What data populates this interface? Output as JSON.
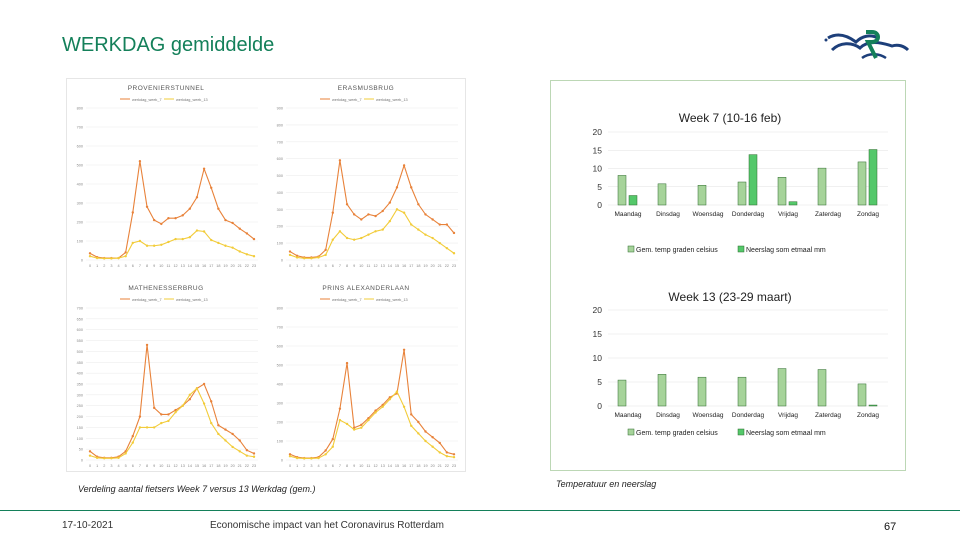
{
  "slide": {
    "title": "WERKDAG gemiddelde",
    "caption_left": "Verdeling aantal fietsers Week 7 versus 13 Werkdag (gem.)",
    "caption_right": "Temperatuur en neerslag",
    "footer_date": "17-10-2021",
    "footer_text": "Economische impact van het Coronavirus Rotterdam",
    "page_number": "67"
  },
  "colors": {
    "brand": "#14805a",
    "orange": "#e8823a",
    "yellow": "#f2cc3a",
    "temp": "#a6d39a",
    "rain": "#54c86a"
  },
  "chart_data": [
    {
      "type": "line",
      "title": "PROVENIERSTUNNEL",
      "legend": [
        "werkdag_week_7",
        "werkdag_week_13"
      ],
      "x": [
        "0",
        "1",
        "2",
        "3",
        "4",
        "5",
        "6",
        "7",
        "8",
        "9",
        "10",
        "11",
        "12",
        "13",
        "14",
        "15",
        "16",
        "17",
        "18",
        "19",
        "20",
        "21",
        "22",
        "23"
      ],
      "ylim": [
        0,
        800
      ],
      "yticks": [
        "0",
        "100",
        "200",
        "300",
        "400",
        "500",
        "600",
        "700",
        "800"
      ],
      "series": [
        {
          "name": "werkdag_week_7",
          "values": [
            35,
            15,
            10,
            10,
            10,
            40,
            250,
            520,
            280,
            210,
            190,
            220,
            220,
            235,
            270,
            330,
            480,
            380,
            270,
            210,
            195,
            165,
            140,
            110
          ]
        },
        {
          "name": "werkdag_week_13",
          "values": [
            20,
            10,
            8,
            8,
            10,
            20,
            90,
            100,
            75,
            75,
            80,
            95,
            110,
            110,
            120,
            155,
            150,
            105,
            90,
            75,
            65,
            45,
            30,
            20
          ]
        }
      ]
    },
    {
      "type": "line",
      "title": "ERASMUSBRUG",
      "legend": [
        "werkdag_week_7",
        "werkdag_week_13"
      ],
      "x": [
        "0",
        "1",
        "2",
        "3",
        "4",
        "5",
        "6",
        "7",
        "8",
        "9",
        "10",
        "11",
        "12",
        "13",
        "14",
        "15",
        "16",
        "17",
        "18",
        "19",
        "20",
        "21",
        "22",
        "23"
      ],
      "ylim": [
        0,
        900
      ],
      "yticks": [
        "0",
        "100",
        "200",
        "300",
        "400",
        "500",
        "600",
        "700",
        "800",
        "900"
      ],
      "series": [
        {
          "name": "werkdag_week_7",
          "values": [
            50,
            25,
            15,
            15,
            20,
            60,
            280,
            590,
            330,
            270,
            240,
            270,
            260,
            290,
            340,
            430,
            560,
            430,
            330,
            270,
            240,
            210,
            210,
            160
          ]
        },
        {
          "name": "werkdag_week_13",
          "values": [
            30,
            15,
            10,
            10,
            15,
            30,
            120,
            170,
            130,
            120,
            130,
            150,
            170,
            180,
            230,
            300,
            280,
            210,
            180,
            150,
            130,
            100,
            70,
            40
          ]
        }
      ]
    },
    {
      "type": "line",
      "title": "MATHENESSERBRUG",
      "legend": [
        "werkdag_week_7",
        "werkdag_week_13"
      ],
      "x": [
        "0",
        "1",
        "2",
        "3",
        "4",
        "5",
        "6",
        "7",
        "8",
        "9",
        "10",
        "11",
        "12",
        "13",
        "14",
        "15",
        "16",
        "17",
        "18",
        "19",
        "20",
        "21",
        "22",
        "23"
      ],
      "ylim": [
        0,
        700
      ],
      "yticks": [
        "0",
        "50",
        "100",
        "150",
        "200",
        "250",
        "300",
        "350",
        "400",
        "450",
        "500",
        "550",
        "600",
        "650",
        "700"
      ],
      "series": [
        {
          "name": "werkdag_week_7",
          "values": [
            40,
            15,
            10,
            10,
            15,
            40,
            110,
            200,
            530,
            240,
            210,
            210,
            230,
            250,
            280,
            330,
            350,
            270,
            160,
            140,
            120,
            90,
            45,
            30
          ]
        },
        {
          "name": "werkdag_week_13",
          "values": [
            20,
            10,
            8,
            8,
            10,
            30,
            80,
            150,
            150,
            150,
            170,
            180,
            220,
            250,
            300,
            330,
            260,
            170,
            120,
            90,
            60,
            40,
            20,
            15
          ]
        }
      ]
    },
    {
      "type": "line",
      "title": "PRINS ALEXANDERLAAN",
      "legend": [
        "werkdag_week_7",
        "werkdag_week_13"
      ],
      "x": [
        "0",
        "1",
        "2",
        "3",
        "4",
        "5",
        "6",
        "7",
        "8",
        "9",
        "10",
        "11",
        "12",
        "13",
        "14",
        "15",
        "16",
        "17",
        "18",
        "19",
        "20",
        "21",
        "22",
        "23"
      ],
      "ylim": [
        0,
        800
      ],
      "yticks": [
        "0",
        "100",
        "200",
        "300",
        "400",
        "500",
        "600",
        "700",
        "800"
      ],
      "series": [
        {
          "name": "werkdag_week_7",
          "values": [
            30,
            15,
            10,
            10,
            15,
            50,
            110,
            270,
            510,
            170,
            185,
            220,
            260,
            290,
            330,
            350,
            580,
            240,
            200,
            150,
            120,
            90,
            40,
            30
          ]
        },
        {
          "name": "werkdag_week_13",
          "values": [
            20,
            10,
            8,
            8,
            10,
            30,
            70,
            210,
            190,
            160,
            170,
            210,
            250,
            280,
            320,
            360,
            280,
            180,
            140,
            100,
            70,
            40,
            20,
            15
          ]
        }
      ]
    },
    {
      "type": "bar",
      "title": "Week 7 (10-16 feb)",
      "categories": [
        "Maandag",
        "Dinsdag",
        "Woensdag",
        "Donderdag",
        "Vrijdag",
        "Zaterdag",
        "Zondag"
      ],
      "ylim": [
        0,
        20
      ],
      "yticks": [
        "0",
        "5",
        "10",
        "15",
        "20"
      ],
      "series": [
        {
          "name": "Gem. temp graden celsius",
          "values": [
            8.1,
            5.8,
            5.4,
            6.3,
            7.6,
            10.1,
            11.8
          ]
        },
        {
          "name": "Neerslag som etmaal mm",
          "values": [
            2.6,
            0,
            0,
            13.8,
            0.9,
            0,
            15.2
          ]
        }
      ]
    },
    {
      "type": "bar",
      "title": "Week 13 (23-29 maart)",
      "categories": [
        "Maandag",
        "Dinsdag",
        "Woensdag",
        "Donderdag",
        "Vrijdag",
        "Zaterdag",
        "Zondag"
      ],
      "ylim": [
        0,
        20
      ],
      "yticks": [
        "0",
        "5",
        "10",
        "15",
        "20"
      ],
      "series": [
        {
          "name": "Gem. temp graden celsius",
          "values": [
            5.4,
            6.6,
            6.0,
            6.0,
            7.8,
            7.6,
            4.6
          ]
        },
        {
          "name": "Neerslag som etmaal mm",
          "values": [
            0,
            0,
            0,
            0,
            0,
            0,
            0.2
          ]
        }
      ]
    }
  ]
}
